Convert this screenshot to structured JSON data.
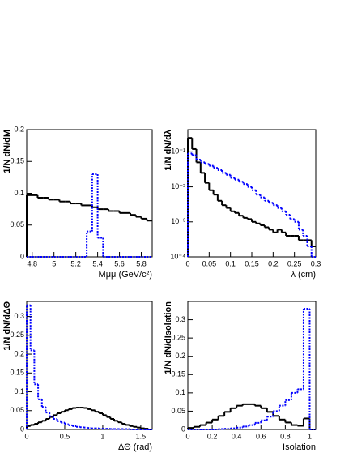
{
  "chart_data": [
    {
      "type": "histogram",
      "ylabel": "1/N dN/dM",
      "xlabel": "Mμμ  (GeV/c²)",
      "bins": [
        4.75,
        4.8,
        4.85,
        4.9,
        4.95,
        5.0,
        5.05,
        5.1,
        5.15,
        5.2,
        5.25,
        5.3,
        5.35,
        5.4,
        5.45,
        5.5,
        5.55,
        5.6,
        5.65,
        5.7,
        5.75,
        5.8,
        5.85,
        5.9
      ],
      "series": [
        {
          "color": "#000000",
          "linestyle": "solid",
          "values": [
            0.097,
            0.097,
            0.093,
            0.093,
            0.09,
            0.09,
            0.087,
            0.087,
            0.084,
            0.084,
            0.081,
            0.081,
            0.078,
            0.075,
            0.075,
            0.072,
            0.072,
            0.069,
            0.069,
            0.066,
            0.063,
            0.06,
            0.057
          ]
        },
        {
          "color": "#0000ff",
          "linestyle": "dotted",
          "values": [
            0,
            0,
            0,
            0,
            0,
            0,
            0,
            0,
            0,
            0,
            0,
            0.04,
            0.13,
            0.03,
            0,
            0,
            0,
            0,
            0,
            0,
            0,
            0,
            0
          ]
        }
      ],
      "xlim": [
        4.75,
        5.9
      ],
      "ylim": [
        0,
        0.2
      ],
      "xticks": [
        4.8,
        5,
        5.2,
        5.4,
        5.6,
        5.8
      ],
      "yticks": [
        0,
        0.05,
        0.1,
        0.15,
        0.2
      ],
      "yscale": "linear"
    },
    {
      "type": "histogram",
      "ylabel": "1/N dN/dλ",
      "xlabel": "λ (cm)",
      "bins": [
        0,
        0.01,
        0.02,
        0.03,
        0.04,
        0.05,
        0.06,
        0.07,
        0.08,
        0.09,
        0.1,
        0.11,
        0.12,
        0.13,
        0.14,
        0.15,
        0.16,
        0.17,
        0.18,
        0.19,
        0.2,
        0.21,
        0.22,
        0.23,
        0.24,
        0.25,
        0.26,
        0.27,
        0.28,
        0.29,
        0.3
      ],
      "series": [
        {
          "color": "#000000",
          "linestyle": "solid",
          "values": [
            0.25,
            0.12,
            0.05,
            0.025,
            0.013,
            0.008,
            0.006,
            0.004,
            0.003,
            0.0025,
            0.002,
            0.0018,
            0.0015,
            0.0013,
            0.0012,
            0.001,
            0.0009,
            0.0008,
            0.0007,
            0.0006,
            0.0005,
            0.0006,
            0.0005,
            0.0004,
            0.0004,
            0.0004,
            0.0003,
            0.0003,
            0.0003,
            0.0002
          ]
        },
        {
          "color": "#0000ff",
          "linestyle": "dotted",
          "values": [
            0.09,
            0.08,
            0.06,
            0.05,
            0.045,
            0.04,
            0.035,
            0.03,
            0.025,
            0.022,
            0.018,
            0.016,
            0.014,
            0.012,
            0.01,
            0.008,
            0.006,
            0.005,
            0.004,
            0.0035,
            0.003,
            0.0025,
            0.002,
            0.0016,
            0.0012,
            0.001,
            0.0006,
            0.0004,
            0.0002,
            0.0001
          ]
        }
      ],
      "xlim": [
        0,
        0.3
      ],
      "ylim": [
        0.0001,
        0.43
      ],
      "xticks": [
        0,
        0.05,
        0.1,
        0.15,
        0.2,
        0.25,
        0.3
      ],
      "yticks": [
        {
          "value": 0.0001,
          "label": "10⁻⁴"
        },
        {
          "value": 0.001,
          "label": "10⁻³"
        },
        {
          "value": 0.01,
          "label": "10⁻²"
        },
        {
          "value": 0.1,
          "label": "10⁻¹"
        }
      ],
      "yscale": "log"
    },
    {
      "type": "histogram",
      "ylabel": "1/N dN/dΔΘ",
      "xlabel": "ΔΘ  (rad)",
      "bins": [
        0,
        0.05,
        0.1,
        0.15,
        0.2,
        0.25,
        0.3,
        0.35,
        0.4,
        0.45,
        0.5,
        0.55,
        0.6,
        0.65,
        0.7,
        0.75,
        0.8,
        0.85,
        0.9,
        0.95,
        1.0,
        1.05,
        1.1,
        1.15,
        1.2,
        1.25,
        1.3,
        1.35,
        1.4,
        1.45,
        1.5,
        1.55,
        1.6,
        1.65
      ],
      "series": [
        {
          "color": "#000000",
          "linestyle": "solid",
          "values": [
            0.009,
            0.012,
            0.015,
            0.019,
            0.023,
            0.028,
            0.033,
            0.038,
            0.043,
            0.047,
            0.051,
            0.054,
            0.057,
            0.058,
            0.058,
            0.057,
            0.054,
            0.051,
            0.047,
            0.043,
            0.038,
            0.033,
            0.028,
            0.023,
            0.019,
            0.015,
            0.012,
            0.009,
            0.007,
            0.005,
            0.003,
            0.002,
            0
          ]
        },
        {
          "color": "#0000ff",
          "linestyle": "dotted",
          "values": [
            0.33,
            0.21,
            0.12,
            0.08,
            0.06,
            0.045,
            0.035,
            0.028,
            0.022,
            0.018,
            0.014,
            0.011,
            0.009,
            0.007,
            0.006,
            0.005,
            0.004,
            0.003,
            0.003,
            0.002,
            0.002,
            0.002,
            0.001,
            0.001,
            0.001,
            0.001,
            0.001,
            0,
            0,
            0,
            0,
            0,
            0
          ]
        }
      ],
      "xlim": [
        0,
        1.65
      ],
      "ylim": [
        0,
        0.34
      ],
      "xticks": [
        0,
        0.5,
        1,
        1.5
      ],
      "yticks": [
        0,
        0.05,
        0.1,
        0.15,
        0.2,
        0.25,
        0.3
      ],
      "yscale": "linear"
    },
    {
      "type": "histogram",
      "ylabel": "1/N dN/dIsolation",
      "xlabel": "Isolation",
      "bins": [
        0,
        0.05,
        0.1,
        0.15,
        0.2,
        0.25,
        0.3,
        0.35,
        0.4,
        0.45,
        0.5,
        0.55,
        0.6,
        0.65,
        0.7,
        0.75,
        0.8,
        0.85,
        0.9,
        0.95,
        1.0,
        1.05
      ],
      "series": [
        {
          "color": "#000000",
          "linestyle": "solid",
          "values": [
            0.0042,
            0.0073,
            0.012,
            0.0187,
            0.027,
            0.037,
            0.048,
            0.058,
            0.065,
            0.069,
            0.069,
            0.065,
            0.058,
            0.048,
            0.037,
            0.027,
            0.019,
            0.012,
            0.01,
            0.03,
            0
          ]
        },
        {
          "color": "#0000ff",
          "linestyle": "dotted",
          "values": [
            0,
            0,
            0,
            0,
            0,
            0.001,
            0.002,
            0.003,
            0.005,
            0.008,
            0.012,
            0.018,
            0.025,
            0.035,
            0.05,
            0.065,
            0.08,
            0.1,
            0.11,
            0.33,
            0
          ]
        }
      ],
      "xlim": [
        0,
        1.05
      ],
      "ylim": [
        0,
        0.35
      ],
      "xticks": [
        0,
        0.2,
        0.4,
        0.6,
        0.8,
        1
      ],
      "yticks": [
        0,
        0.05,
        0.1,
        0.15,
        0.2,
        0.25,
        0.3
      ],
      "yscale": "linear"
    }
  ]
}
